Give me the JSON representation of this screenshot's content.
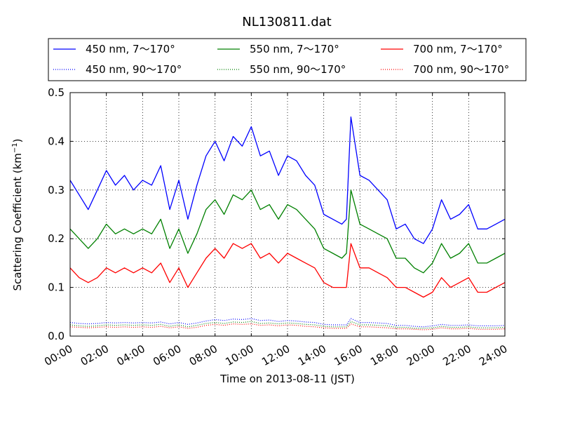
{
  "chart_data": {
    "type": "line",
    "title": "NL130811.dat",
    "xlabel": "Time on 2013-08-11 (JST)",
    "ylabel": "Scattering Coefficient (km",
    "ylabel_sup": "−1",
    "ylabel_close": ")",
    "xlim_hours": [
      0,
      24
    ],
    "ylim": [
      0,
      0.5
    ],
    "x_ticks": [
      "00:00",
      "02:00",
      "04:00",
      "06:00",
      "08:00",
      "10:00",
      "12:00",
      "14:00",
      "16:00",
      "18:00",
      "20:00",
      "22:00",
      "24:00"
    ],
    "y_ticks": [
      "0.0",
      "0.1",
      "0.2",
      "0.3",
      "0.4",
      "0.5"
    ],
    "grid": true,
    "legend_placement": "top, above plot, 3 columns",
    "x_hours": [
      0,
      0.5,
      1,
      1.5,
      2,
      2.5,
      3,
      3.5,
      4,
      4.5,
      5,
      5.5,
      6,
      6.5,
      7,
      7.5,
      8,
      8.5,
      9,
      9.5,
      10,
      10.5,
      11,
      11.5,
      12,
      12.5,
      13,
      13.5,
      14,
      14.5,
      15,
      15.25,
      15.5,
      16,
      16.5,
      17,
      17.5,
      18,
      18.5,
      19,
      19.5,
      20,
      20.5,
      21,
      21.5,
      22,
      22.5,
      23,
      23.5,
      24
    ],
    "series": [
      {
        "name": "450 nm, 7～170°",
        "color": "#0000ff",
        "style": "solid",
        "values": [
          0.32,
          0.29,
          0.26,
          0.3,
          0.34,
          0.31,
          0.33,
          0.3,
          0.32,
          0.31,
          0.35,
          0.26,
          0.32,
          0.24,
          0.31,
          0.37,
          0.4,
          0.36,
          0.41,
          0.39,
          0.43,
          0.37,
          0.38,
          0.33,
          0.37,
          0.36,
          0.33,
          0.31,
          0.25,
          0.24,
          0.23,
          0.24,
          0.45,
          0.33,
          0.32,
          0.3,
          0.28,
          0.22,
          0.23,
          0.2,
          0.19,
          0.22,
          0.28,
          0.24,
          0.25,
          0.27,
          0.22,
          0.22,
          0.23,
          0.24
        ]
      },
      {
        "name": "550 nm, 7～170°",
        "color": "#008000",
        "style": "solid",
        "values": [
          0.22,
          0.2,
          0.18,
          0.2,
          0.23,
          0.21,
          0.22,
          0.21,
          0.22,
          0.21,
          0.24,
          0.18,
          0.22,
          0.17,
          0.21,
          0.26,
          0.28,
          0.25,
          0.29,
          0.28,
          0.3,
          0.26,
          0.27,
          0.24,
          0.27,
          0.26,
          0.24,
          0.22,
          0.18,
          0.17,
          0.16,
          0.17,
          0.3,
          0.23,
          0.22,
          0.21,
          0.2,
          0.16,
          0.16,
          0.14,
          0.13,
          0.15,
          0.19,
          0.16,
          0.17,
          0.19,
          0.15,
          0.15,
          0.16,
          0.17
        ]
      },
      {
        "name": "700 nm, 7～170°",
        "color": "#ff0000",
        "style": "solid",
        "values": [
          0.14,
          0.12,
          0.11,
          0.12,
          0.14,
          0.13,
          0.14,
          0.13,
          0.14,
          0.13,
          0.15,
          0.11,
          0.14,
          0.1,
          0.13,
          0.16,
          0.18,
          0.16,
          0.19,
          0.18,
          0.19,
          0.16,
          0.17,
          0.15,
          0.17,
          0.16,
          0.15,
          0.14,
          0.11,
          0.1,
          0.1,
          0.1,
          0.19,
          0.14,
          0.14,
          0.13,
          0.12,
          0.1,
          0.1,
          0.09,
          0.08,
          0.09,
          0.12,
          0.1,
          0.11,
          0.12,
          0.09,
          0.09,
          0.1,
          0.11
        ]
      },
      {
        "name": "450 nm, 90～170°",
        "color": "#0000ff",
        "style": "dotted",
        "values": [
          0.028,
          0.026,
          0.025,
          0.026,
          0.028,
          0.027,
          0.028,
          0.027,
          0.028,
          0.027,
          0.029,
          0.025,
          0.028,
          0.024,
          0.027,
          0.031,
          0.034,
          0.032,
          0.035,
          0.034,
          0.036,
          0.032,
          0.033,
          0.03,
          0.032,
          0.031,
          0.029,
          0.028,
          0.024,
          0.023,
          0.023,
          0.023,
          0.036,
          0.028,
          0.028,
          0.027,
          0.026,
          0.022,
          0.022,
          0.02,
          0.019,
          0.021,
          0.024,
          0.022,
          0.022,
          0.023,
          0.021,
          0.021,
          0.021,
          0.022
        ]
      },
      {
        "name": "550 nm, 90～170°",
        "color": "#008000",
        "style": "dotted",
        "values": [
          0.023,
          0.021,
          0.02,
          0.021,
          0.023,
          0.022,
          0.023,
          0.022,
          0.023,
          0.022,
          0.024,
          0.02,
          0.023,
          0.019,
          0.022,
          0.026,
          0.028,
          0.026,
          0.029,
          0.028,
          0.03,
          0.026,
          0.027,
          0.025,
          0.027,
          0.026,
          0.024,
          0.023,
          0.02,
          0.019,
          0.019,
          0.019,
          0.03,
          0.023,
          0.023,
          0.022,
          0.021,
          0.018,
          0.018,
          0.016,
          0.016,
          0.017,
          0.02,
          0.018,
          0.018,
          0.019,
          0.017,
          0.017,
          0.017,
          0.018
        ]
      },
      {
        "name": "700 nm, 90～170°",
        "color": "#ff0000",
        "style": "dotted",
        "values": [
          0.019,
          0.018,
          0.017,
          0.018,
          0.019,
          0.018,
          0.019,
          0.018,
          0.019,
          0.018,
          0.02,
          0.017,
          0.019,
          0.016,
          0.018,
          0.022,
          0.024,
          0.022,
          0.025,
          0.024,
          0.025,
          0.022,
          0.023,
          0.021,
          0.023,
          0.022,
          0.02,
          0.019,
          0.017,
          0.016,
          0.016,
          0.016,
          0.025,
          0.019,
          0.019,
          0.018,
          0.017,
          0.015,
          0.015,
          0.014,
          0.013,
          0.014,
          0.017,
          0.015,
          0.015,
          0.016,
          0.014,
          0.014,
          0.014,
          0.015
        ]
      }
    ]
  }
}
